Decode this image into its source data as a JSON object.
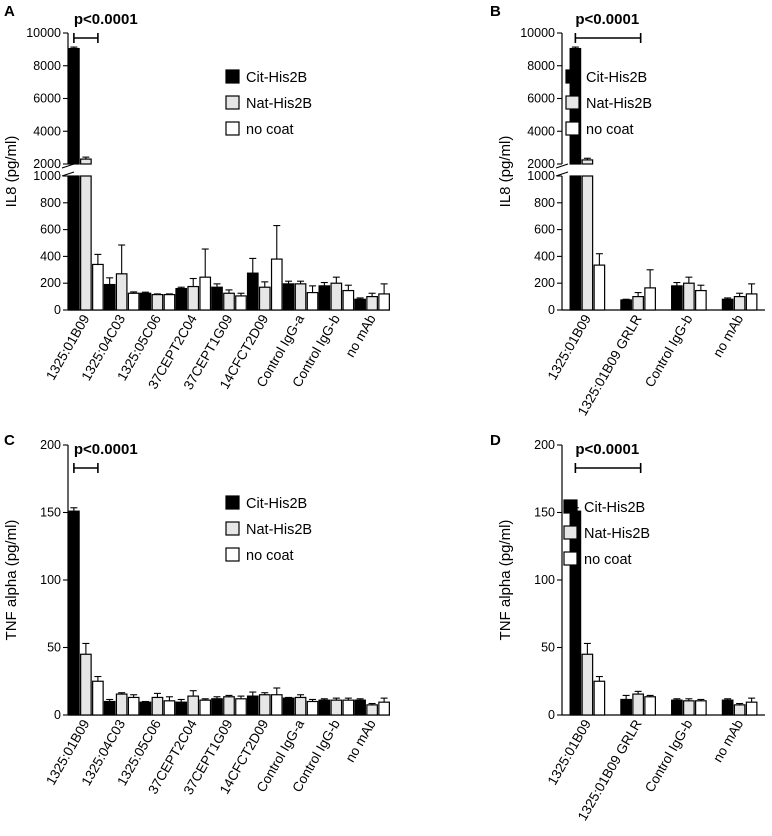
{
  "series_styles": {
    "Cit-His2B": "#000000",
    "Nat-His2B": "#e6e6e6",
    "no coat": "#ffffff"
  },
  "chart_data": [
    {
      "panel": "A",
      "type": "bar",
      "ylabel": "IL8 (pg/ml)",
      "axis_break": true,
      "lower_ylim": [
        0,
        1000
      ],
      "upper_ylim": [
        2000,
        10000
      ],
      "yticks_lower": [
        "0",
        "200",
        "400",
        "600",
        "800",
        "1000"
      ],
      "yticks_upper": [
        "2000",
        "4000",
        "6000",
        "8000",
        "10000"
      ],
      "categories": [
        "1325:01B09",
        "1325:04C03",
        "1325:05C06",
        "37CEPT2C04",
        "37CEPT1G09",
        "14CFCT2D09",
        "Control IgG-a",
        "Control IgG-b",
        "no mAb"
      ],
      "series": [
        {
          "name": "Cit-His2B",
          "values": [
            9050,
            190,
            125,
            160,
            170,
            275,
            195,
            180,
            80
          ],
          "errors": [
            90,
            50,
            8,
            10,
            25,
            110,
            20,
            25,
            10
          ]
        },
        {
          "name": "Nat-His2B",
          "values": [
            2300,
            270,
            115,
            175,
            125,
            170,
            195,
            200,
            100
          ],
          "errors": [
            120,
            215,
            5,
            60,
            25,
            40,
            20,
            45,
            25
          ]
        },
        {
          "name": "no coat",
          "values": [
            340,
            125,
            115,
            245,
            105,
            380,
            130,
            145,
            120
          ],
          "errors": [
            75,
            10,
            5,
            210,
            20,
            250,
            50,
            40,
            75
          ]
        }
      ],
      "annotation": "p<0.0001",
      "legend": [
        "Cit-His2B",
        "Nat-His2B",
        "no coat"
      ],
      "legend_position": "right"
    },
    {
      "panel": "B",
      "type": "bar",
      "ylabel": "IL8 (pg/ml)",
      "axis_break": true,
      "lower_ylim": [
        0,
        1000
      ],
      "upper_ylim": [
        2000,
        10000
      ],
      "yticks_lower": [
        "0",
        "200",
        "400",
        "600",
        "800",
        "1000"
      ],
      "yticks_upper": [
        "2000",
        "4000",
        "6000",
        "8000",
        "10000"
      ],
      "categories": [
        "1325:01B09",
        "1325:01B09 GRLR",
        "Control IgG-b",
        "no mAb"
      ],
      "series": [
        {
          "name": "Cit-His2B",
          "values": [
            9050,
            75,
            180,
            80
          ],
          "errors": [
            90,
            5,
            25,
            10
          ]
        },
        {
          "name": "Nat-His2B",
          "values": [
            2250,
            100,
            200,
            100
          ],
          "errors": [
            100,
            30,
            45,
            25
          ]
        },
        {
          "name": "no coat",
          "values": [
            335,
            165,
            145,
            120
          ],
          "errors": [
            85,
            135,
            40,
            75
          ]
        }
      ],
      "annotation": "p<0.0001",
      "legend": [
        "Cit-His2B",
        "Nat-His2B",
        "no coat"
      ],
      "legend_position": "right"
    },
    {
      "panel": "C",
      "type": "bar",
      "ylabel": "TNF alpha (pg/ml)",
      "axis_break": false,
      "ylim": [
        0,
        200
      ],
      "yticks": [
        "0",
        "50",
        "100",
        "150",
        "200"
      ],
      "categories": [
        "1325:01B09",
        "1325:04C03",
        "1325:05C06",
        "37CEPT2C04",
        "37CEPT1G09",
        "14CFCT2D09",
        "Control IgG-a",
        "Control IgG-b",
        "no mAb"
      ],
      "series": [
        {
          "name": "Cit-His2B",
          "values": [
            151,
            10,
            9.5,
            9.5,
            12,
            14,
            12.5,
            11,
            11
          ],
          "errors": [
            2.5,
            1.5,
            0.5,
            2,
            1.5,
            3,
            0.5,
            1,
            1
          ]
        },
        {
          "name": "Nat-His2B",
          "values": [
            45,
            15.5,
            13,
            14,
            13.5,
            15,
            13,
            11,
            7.5
          ],
          "errors": [
            8,
            1,
            3,
            4,
            1,
            1.5,
            2,
            1.5,
            1
          ]
        },
        {
          "name": "no coat",
          "values": [
            25,
            13,
            10.5,
            11,
            12,
            15,
            10,
            11,
            9.5
          ],
          "errors": [
            3.5,
            2,
            3,
            1,
            2,
            5,
            1.5,
            1.5,
            3
          ]
        }
      ],
      "annotation": "p<0.0001",
      "legend": [
        "Cit-His2B",
        "Nat-His2B",
        "no coat"
      ],
      "legend_position": "right"
    },
    {
      "panel": "D",
      "type": "bar",
      "ylabel": "TNF alpha (pg/ml)",
      "axis_break": false,
      "ylim": [
        0,
        200
      ],
      "yticks": [
        "0",
        "50",
        "100",
        "150",
        "200"
      ],
      "categories": [
        "1325:01B09",
        "1325:01B09 GRLR",
        "Control IgG-b",
        "no mAb"
      ],
      "series": [
        {
          "name": "Cit-His2B",
          "values": [
            151,
            11.5,
            11,
            11
          ],
          "errors": [
            2.5,
            3,
            1,
            1
          ]
        },
        {
          "name": "Nat-His2B",
          "values": [
            45,
            15.5,
            10.5,
            7.5
          ],
          "errors": [
            8,
            2,
            1.5,
            1
          ]
        },
        {
          "name": "no coat",
          "values": [
            25,
            13.5,
            10.5,
            9.5
          ],
          "errors": [
            3.5,
            1,
            1,
            3
          ]
        }
      ],
      "annotation": "p<0.0001",
      "legend": [
        "Cit-His2B",
        "Nat-His2B",
        "no coat"
      ],
      "legend_position": "right"
    }
  ]
}
